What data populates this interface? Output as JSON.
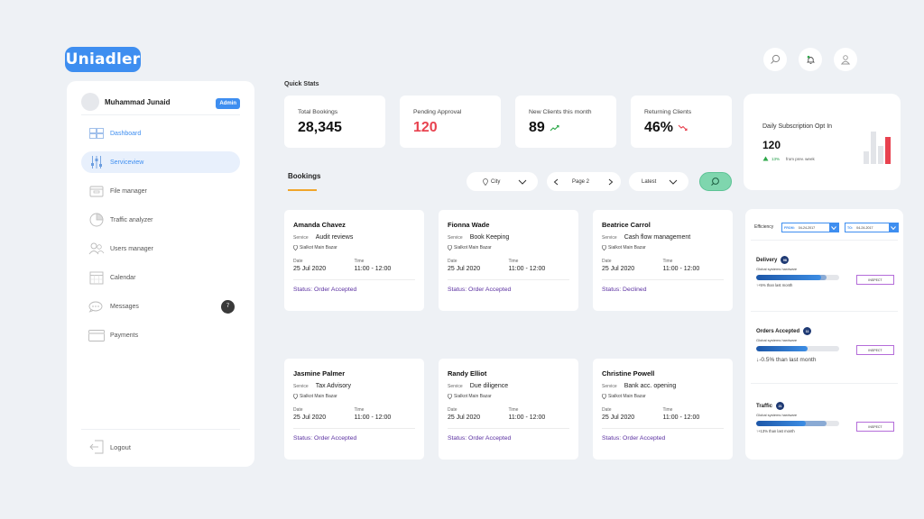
{
  "app": {
    "logo": "Uniadler"
  },
  "topbar": {
    "icons": [
      "search-icon",
      "bell-icon",
      "user-icon"
    ]
  },
  "sidebar": {
    "user_name": "Muhammad Junaid",
    "role_badge": "Admin",
    "items": [
      {
        "label": "Dashboard",
        "icon": "dashboard-icon"
      },
      {
        "label": "Serviceview",
        "icon": "sliders-icon"
      },
      {
        "label": "File manager",
        "icon": "folder-icon"
      },
      {
        "label": "Traffic analyzer",
        "icon": "pie-chart-icon"
      },
      {
        "label": "Users manager",
        "icon": "users-icon"
      },
      {
        "label": "Calendar",
        "icon": "calendar-icon"
      },
      {
        "label": "Messages",
        "icon": "chat-icon",
        "count": "7"
      },
      {
        "label": "Payments",
        "icon": "credit-card-icon"
      }
    ],
    "logout": "Logout"
  },
  "quick_stats": {
    "title": "Quick Stats",
    "cards": [
      {
        "label": "Total Bookings",
        "value": "28,345"
      },
      {
        "label": "Pending Approval",
        "value": "120"
      },
      {
        "label": "New Clients this month",
        "value": "89"
      },
      {
        "label": "Returning Clients",
        "value": "46%"
      }
    ]
  },
  "subscription": {
    "label": "Daily Subscription Opt In",
    "value": "120",
    "change_pct": "13%",
    "change_text": "from prev. week"
  },
  "bookings": {
    "tab": "Bookings",
    "filters": {
      "city": "City",
      "page": "Page 2",
      "sort": "Latest"
    },
    "service_label": "Service",
    "date_label": "Date",
    "time_label": "Time",
    "cards": [
      {
        "name": "Amanda Chavez",
        "service": "Audit reviews",
        "location": "Sialkot Main Bazar",
        "date": "25 Jul 2020",
        "time": "11:00 - 12:00",
        "status": "Status: Order Accepted"
      },
      {
        "name": "Fionna Wade",
        "service": "Book Keeping",
        "location": "Sialkot Main Bazar",
        "date": "25 Jul 2020",
        "time": "11:00 - 12:00",
        "status": "Status: Order Accepted"
      },
      {
        "name": "Beatrice Carrol",
        "service": "Cash flow management",
        "location": "Sialkot Main Bazar",
        "date": "25 Jul 2020",
        "time": "11:00 - 12:00",
        "status": "Status: Declined"
      },
      {
        "name": "Jasmine Palmer",
        "service": "Tax Advisory",
        "location": "Sialkot Main Bazar",
        "date": "25 Jul 2020",
        "time": "11:00 - 12:00",
        "status": "Status: Order Accepted"
      },
      {
        "name": "Randy Elliot",
        "service": "Due diligence",
        "location": "Sialkot Main Bazar",
        "date": "25 Jul 2020",
        "time": "11:00 - 12:00",
        "status": "Status: Order Accepted"
      },
      {
        "name": "Christine Powell",
        "service": "Bank acc. opening",
        "location": "Sialkot Main Bazar",
        "date": "25 Jul 2020",
        "time": "11:00 - 12:00",
        "status": "Status: Order Accepted"
      }
    ]
  },
  "efficiency": {
    "label": "Efficiency",
    "from_label": "FROM:",
    "from_date": "04-24-2017",
    "to_label": "TO:",
    "to_date": "04-24-2017",
    "inspect_label": "INSPECT",
    "metrics": [
      {
        "title": "Delivery",
        "badge": "98",
        "sub": "Global systems hardware",
        "progress": 0.78,
        "secondary": 0.85,
        "note": "↑+5% than last month"
      },
      {
        "title": "Orders Accepted",
        "badge": "11",
        "sub": "Global systems hardware",
        "progress": 0.62,
        "secondary": 0.0,
        "note": "↓-0.5% than last month"
      },
      {
        "title": "Traffic",
        "badge": "21",
        "sub": "Global systems hardware",
        "progress": 0.6,
        "secondary": 0.85,
        "note": "↑+13% than last month"
      }
    ]
  },
  "colors": {
    "accent": "#3e8ef0",
    "danger": "#e8424f",
    "success": "#1c9a45",
    "status": "#5a2fa0"
  }
}
